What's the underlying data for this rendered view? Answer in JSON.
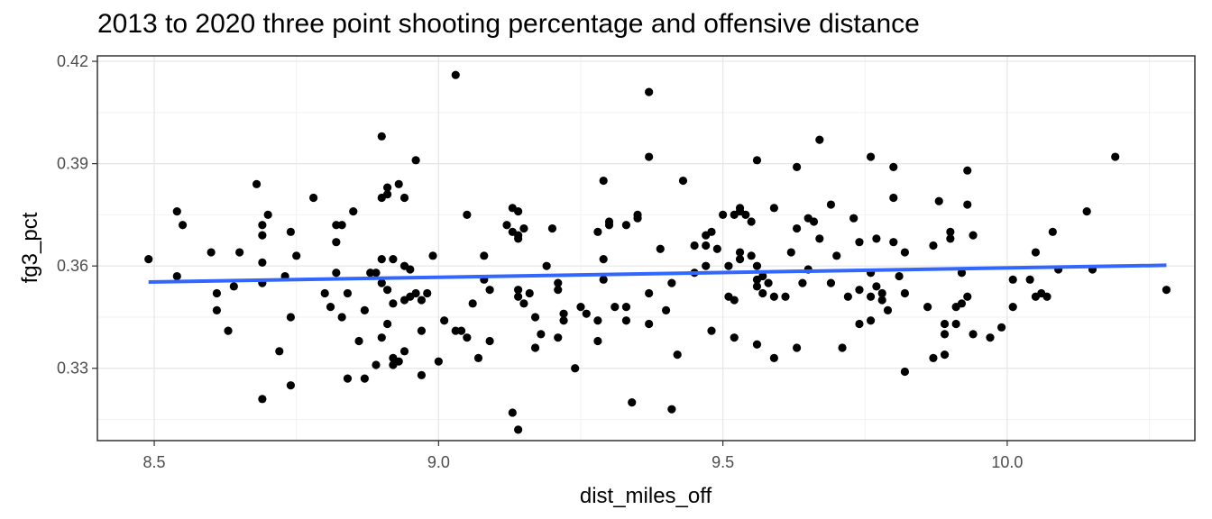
{
  "chart_data": {
    "type": "scatter",
    "title": "2013 to 2020 three point shooting percentage and offensive distance",
    "xlabel": "dist_miles_off",
    "ylabel": "fg3_pct",
    "xlim": [
      8.4,
      10.33
    ],
    "ylim": [
      0.3088,
      0.4216
    ],
    "x_ticks": [
      8.5,
      9.0,
      9.5,
      10.0
    ],
    "x_tick_labels": [
      "8.5",
      "9.0",
      "9.5",
      "10.0"
    ],
    "y_ticks": [
      0.33,
      0.36,
      0.39,
      0.42
    ],
    "y_tick_labels": [
      "0.33",
      "0.36",
      "0.39",
      "0.42"
    ],
    "grid": true,
    "point_color": "#000000",
    "trend_color": "#3366FF",
    "trend_line": {
      "x": [
        8.49,
        10.28
      ],
      "y": [
        0.3553,
        0.3602
      ]
    },
    "points": [
      [
        8.49,
        0.362
      ],
      [
        8.54,
        0.376
      ],
      [
        8.54,
        0.357
      ],
      [
        8.55,
        0.372
      ],
      [
        8.6,
        0.364
      ],
      [
        8.61,
        0.352
      ],
      [
        8.61,
        0.347
      ],
      [
        8.63,
        0.341
      ],
      [
        8.64,
        0.354
      ],
      [
        8.65,
        0.364
      ],
      [
        8.68,
        0.384
      ],
      [
        8.69,
        0.372
      ],
      [
        8.69,
        0.369
      ],
      [
        8.69,
        0.361
      ],
      [
        8.69,
        0.355
      ],
      [
        8.69,
        0.321
      ],
      [
        8.7,
        0.375
      ],
      [
        8.72,
        0.335
      ],
      [
        8.73,
        0.357
      ],
      [
        8.74,
        0.37
      ],
      [
        8.74,
        0.345
      ],
      [
        8.74,
        0.325
      ],
      [
        8.75,
        0.363
      ],
      [
        8.78,
        0.38
      ],
      [
        8.8,
        0.352
      ],
      [
        8.81,
        0.348
      ],
      [
        8.82,
        0.358
      ],
      [
        8.82,
        0.372
      ],
      [
        8.82,
        0.367
      ],
      [
        8.83,
        0.345
      ],
      [
        8.83,
        0.372
      ],
      [
        8.84,
        0.327
      ],
      [
        8.84,
        0.352
      ],
      [
        8.85,
        0.376
      ],
      [
        8.86,
        0.338
      ],
      [
        8.87,
        0.327
      ],
      [
        8.87,
        0.347
      ],
      [
        8.88,
        0.358
      ],
      [
        8.89,
        0.358
      ],
      [
        8.89,
        0.331
      ],
      [
        8.9,
        0.398
      ],
      [
        8.9,
        0.38
      ],
      [
        8.9,
        0.362
      ],
      [
        8.9,
        0.355
      ],
      [
        8.9,
        0.339
      ],
      [
        8.91,
        0.383
      ],
      [
        8.91,
        0.381
      ],
      [
        8.91,
        0.353
      ],
      [
        8.91,
        0.343
      ],
      [
        8.92,
        0.362
      ],
      [
        8.92,
        0.349
      ],
      [
        8.92,
        0.333
      ],
      [
        8.92,
        0.331
      ],
      [
        8.93,
        0.384
      ],
      [
        8.93,
        0.332
      ],
      [
        8.94,
        0.36
      ],
      [
        8.94,
        0.38
      ],
      [
        8.94,
        0.35
      ],
      [
        8.94,
        0.335
      ],
      [
        8.95,
        0.359
      ],
      [
        8.95,
        0.351
      ],
      [
        8.96,
        0.391
      ],
      [
        8.96,
        0.352
      ],
      [
        8.97,
        0.35
      ],
      [
        8.97,
        0.341
      ],
      [
        8.97,
        0.328
      ],
      [
        8.98,
        0.352
      ],
      [
        8.99,
        0.363
      ],
      [
        9.0,
        0.332
      ],
      [
        9.01,
        0.344
      ],
      [
        9.03,
        0.416
      ],
      [
        9.03,
        0.341
      ],
      [
        9.04,
        0.341
      ],
      [
        9.05,
        0.375
      ],
      [
        9.05,
        0.339
      ],
      [
        9.06,
        0.349
      ],
      [
        9.07,
        0.333
      ],
      [
        9.08,
        0.363
      ],
      [
        9.08,
        0.356
      ],
      [
        9.09,
        0.353
      ],
      [
        9.09,
        0.338
      ],
      [
        9.12,
        0.372
      ],
      [
        9.13,
        0.377
      ],
      [
        9.13,
        0.37
      ],
      [
        9.13,
        0.317
      ],
      [
        9.14,
        0.376
      ],
      [
        9.14,
        0.369
      ],
      [
        9.14,
        0.368
      ],
      [
        9.14,
        0.353
      ],
      [
        9.14,
        0.351
      ],
      [
        9.14,
        0.312
      ],
      [
        9.15,
        0.371
      ],
      [
        9.15,
        0.349
      ],
      [
        9.16,
        0.352
      ],
      [
        9.17,
        0.345
      ],
      [
        9.17,
        0.336
      ],
      [
        9.18,
        0.34
      ],
      [
        9.19,
        0.36
      ],
      [
        9.2,
        0.371
      ],
      [
        9.21,
        0.355
      ],
      [
        9.21,
        0.339
      ],
      [
        9.21,
        0.353
      ],
      [
        9.22,
        0.346
      ],
      [
        9.22,
        0.344
      ],
      [
        9.24,
        0.33
      ],
      [
        9.25,
        0.348
      ],
      [
        9.26,
        0.346
      ],
      [
        9.28,
        0.37
      ],
      [
        9.28,
        0.344
      ],
      [
        9.28,
        0.338
      ],
      [
        9.29,
        0.385
      ],
      [
        9.29,
        0.362
      ],
      [
        9.29,
        0.356
      ],
      [
        9.3,
        0.373
      ],
      [
        9.3,
        0.372
      ],
      [
        9.31,
        0.348
      ],
      [
        9.33,
        0.372
      ],
      [
        9.33,
        0.348
      ],
      [
        9.33,
        0.344
      ],
      [
        9.34,
        0.32
      ],
      [
        9.35,
        0.375
      ],
      [
        9.35,
        0.374
      ],
      [
        9.37,
        0.411
      ],
      [
        9.37,
        0.392
      ],
      [
        9.37,
        0.352
      ],
      [
        9.37,
        0.343
      ],
      [
        9.39,
        0.365
      ],
      [
        9.4,
        0.347
      ],
      [
        9.41,
        0.318
      ],
      [
        9.41,
        0.355
      ],
      [
        9.42,
        0.334
      ],
      [
        9.43,
        0.385
      ],
      [
        9.45,
        0.358
      ],
      [
        9.45,
        0.366
      ],
      [
        9.47,
        0.366
      ],
      [
        9.47,
        0.36
      ],
      [
        9.47,
        0.369
      ],
      [
        9.48,
        0.37
      ],
      [
        9.48,
        0.341
      ],
      [
        9.49,
        0.365
      ],
      [
        9.5,
        0.375
      ],
      [
        9.51,
        0.36
      ],
      [
        9.51,
        0.351
      ],
      [
        9.52,
        0.35
      ],
      [
        9.52,
        0.339
      ],
      [
        9.52,
        0.375
      ],
      [
        9.53,
        0.376
      ],
      [
        9.53,
        0.364
      ],
      [
        9.53,
        0.362
      ],
      [
        9.53,
        0.377
      ],
      [
        9.54,
        0.375
      ],
      [
        9.55,
        0.373
      ],
      [
        9.55,
        0.363
      ],
      [
        9.56,
        0.391
      ],
      [
        9.56,
        0.36
      ],
      [
        9.56,
        0.356
      ],
      [
        9.56,
        0.354
      ],
      [
        9.56,
        0.337
      ],
      [
        9.57,
        0.357
      ],
      [
        9.57,
        0.352
      ],
      [
        9.58,
        0.355
      ],
      [
        9.59,
        0.377
      ],
      [
        9.59,
        0.351
      ],
      [
        9.59,
        0.333
      ],
      [
        9.61,
        0.351
      ],
      [
        9.62,
        0.364
      ],
      [
        9.63,
        0.389
      ],
      [
        9.63,
        0.371
      ],
      [
        9.63,
        0.336
      ],
      [
        9.64,
        0.355
      ],
      [
        9.65,
        0.374
      ],
      [
        9.65,
        0.359
      ],
      [
        9.66,
        0.373
      ],
      [
        9.67,
        0.397
      ],
      [
        9.67,
        0.368
      ],
      [
        9.69,
        0.378
      ],
      [
        9.69,
        0.355
      ],
      [
        9.7,
        0.363
      ],
      [
        9.71,
        0.336
      ],
      [
        9.72,
        0.351
      ],
      [
        9.73,
        0.374
      ],
      [
        9.74,
        0.367
      ],
      [
        9.74,
        0.353
      ],
      [
        9.74,
        0.343
      ],
      [
        9.76,
        0.392
      ],
      [
        9.76,
        0.358
      ],
      [
        9.76,
        0.351
      ],
      [
        9.76,
        0.344
      ],
      [
        9.77,
        0.368
      ],
      [
        9.77,
        0.354
      ],
      [
        9.78,
        0.352
      ],
      [
        9.78,
        0.35
      ],
      [
        9.79,
        0.347
      ],
      [
        9.8,
        0.389
      ],
      [
        9.8,
        0.38
      ],
      [
        9.8,
        0.367
      ],
      [
        9.81,
        0.357
      ],
      [
        9.82,
        0.364
      ],
      [
        9.82,
        0.352
      ],
      [
        9.82,
        0.329
      ],
      [
        9.86,
        0.348
      ],
      [
        9.87,
        0.366
      ],
      [
        9.87,
        0.333
      ],
      [
        9.88,
        0.379
      ],
      [
        9.89,
        0.343
      ],
      [
        9.89,
        0.34
      ],
      [
        9.89,
        0.334
      ],
      [
        9.9,
        0.37
      ],
      [
        9.9,
        0.368
      ],
      [
        9.91,
        0.348
      ],
      [
        9.91,
        0.343
      ],
      [
        9.92,
        0.358
      ],
      [
        9.92,
        0.349
      ],
      [
        9.93,
        0.388
      ],
      [
        9.93,
        0.378
      ],
      [
        9.93,
        0.351
      ],
      [
        9.94,
        0.369
      ],
      [
        9.94,
        0.34
      ],
      [
        9.97,
        0.339
      ],
      [
        9.99,
        0.342
      ],
      [
        10.01,
        0.356
      ],
      [
        10.01,
        0.348
      ],
      [
        10.04,
        0.356
      ],
      [
        10.05,
        0.364
      ],
      [
        10.05,
        0.351
      ],
      [
        10.06,
        0.352
      ],
      [
        10.07,
        0.351
      ],
      [
        10.08,
        0.37
      ],
      [
        10.09,
        0.359
      ],
      [
        10.14,
        0.376
      ],
      [
        10.15,
        0.359
      ],
      [
        10.19,
        0.392
      ],
      [
        10.28,
        0.353
      ]
    ]
  }
}
